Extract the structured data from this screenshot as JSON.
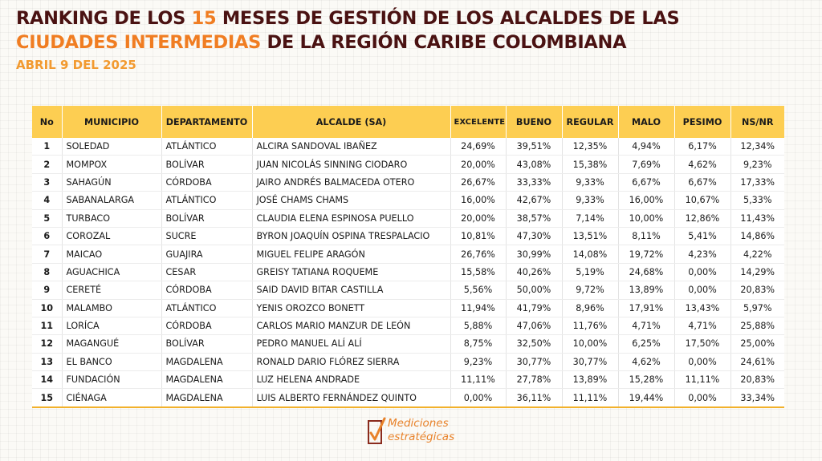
{
  "header": {
    "title_line1_a": "RANKING DE LOS ",
    "title_line1_num": "15",
    "title_line1_b": " MESES DE GESTIÓN DE LOS ALCALDES DE LAS",
    "title_line2_hl": "CIUDADES INTERMEDIAS",
    "title_line2_b": " DE LA REGIÓN CARIBE COLOMBIANA",
    "date": "ABRIL 9 DEL 2025"
  },
  "table": {
    "headers": [
      "No",
      "MUNICIPIO",
      "DEPARTAMENTO",
      "ALCALDE (SA)",
      "EXCELENTE",
      "BUENO",
      "REGULAR",
      "MALO",
      "PESIMO",
      "NS/NR"
    ],
    "rows": [
      [
        "1",
        "SOLEDAD",
        "ATLÁNTICO",
        "ALCIRA SANDOVAL IBAÑEZ",
        "24,69%",
        "39,51%",
        "12,35%",
        "4,94%",
        "6,17%",
        "12,34%"
      ],
      [
        "2",
        "MOMPOX",
        "BOLÍVAR",
        "JUAN NICOLÁS SINNING CIODARO",
        "20,00%",
        "43,08%",
        "15,38%",
        "7,69%",
        "4,62%",
        "9,23%"
      ],
      [
        "3",
        "SAHAGÚN",
        "CÓRDOBA",
        "JAIRO ANDRÉS BALMACEDA OTERO",
        "26,67%",
        "33,33%",
        "9,33%",
        "6,67%",
        "6,67%",
        "17,33%"
      ],
      [
        "4",
        "SABANALARGA",
        "ATLÁNTICO",
        "JOSÉ CHAMS CHAMS",
        "16,00%",
        "42,67%",
        "9,33%",
        "16,00%",
        "10,67%",
        "5,33%"
      ],
      [
        "5",
        "TURBACO",
        "BOLÍVAR",
        "CLAUDIA ELENA ESPINOSA PUELLO",
        "20,00%",
        "38,57%",
        "7,14%",
        "10,00%",
        "12,86%",
        "11,43%"
      ],
      [
        "6",
        "COROZAL",
        "SUCRE",
        "BYRON JOAQUÍN OSPINA TRESPALACIO",
        "10,81%",
        "47,30%",
        "13,51%",
        "8,11%",
        "5,41%",
        "14,86%"
      ],
      [
        "7",
        "MAICAO",
        "GUAJIRA",
        "MIGUEL FELIPE ARAGÓN",
        "26,76%",
        "30,99%",
        "14,08%",
        "19,72%",
        "4,23%",
        "4,22%"
      ],
      [
        "8",
        "AGUACHICA",
        "CESAR",
        "GREISY TATIANA ROQUEME",
        "15,58%",
        "40,26%",
        "5,19%",
        "24,68%",
        "0,00%",
        "14,29%"
      ],
      [
        "9",
        "CERETÉ",
        "CÓRDOBA",
        "SAID DAVID BITAR CASTILLA",
        "5,56%",
        "50,00%",
        "9,72%",
        "13,89%",
        "0,00%",
        "20,83%"
      ],
      [
        "10",
        "MALAMBO",
        "ATLÁNTICO",
        "YENIS OROZCO BONETT",
        "11,94%",
        "41,79%",
        "8,96%",
        "17,91%",
        "13,43%",
        "5,97%"
      ],
      [
        "11",
        "LORÍCA",
        "CÓRDOBA",
        "CARLOS MARIO MANZUR DE LEÓN",
        "5,88%",
        "47,06%",
        "11,76%",
        "4,71%",
        "4,71%",
        "25,88%"
      ],
      [
        "12",
        "MAGANGUÉ",
        "BOLÍVAR",
        "PEDRO MANUEL ALÍ ALÍ",
        "8,75%",
        "32,50%",
        "10,00%",
        "6,25%",
        "17,50%",
        "25,00%"
      ],
      [
        "13",
        "EL BANCO",
        "MAGDALENA",
        "RONALD DARIO FLÓREZ SIERRA",
        "9,23%",
        "30,77%",
        "30,77%",
        "4,62%",
        "0,00%",
        "24,61%"
      ],
      [
        "14",
        "FUNDACIÓN",
        "MAGDALENA",
        "LUZ HELENA ANDRADE",
        "11,11%",
        "27,78%",
        "13,89%",
        "15,28%",
        "11,11%",
        "20,83%"
      ],
      [
        "15",
        "CIÉNAGA",
        "MAGDALENA",
        "LUIS ALBERTO FERNÁNDEZ QUINTO",
        "0,00%",
        "36,11%",
        "11,11%",
        "19,44%",
        "0,00%",
        "33,34%"
      ]
    ]
  },
  "logo": {
    "line1": "Mediciones",
    "line2": "estratégicas"
  },
  "colors": {
    "title": "#4a1212",
    "accent": "#f07d22",
    "date": "#f29a30",
    "header_bg": "#fdce52"
  }
}
